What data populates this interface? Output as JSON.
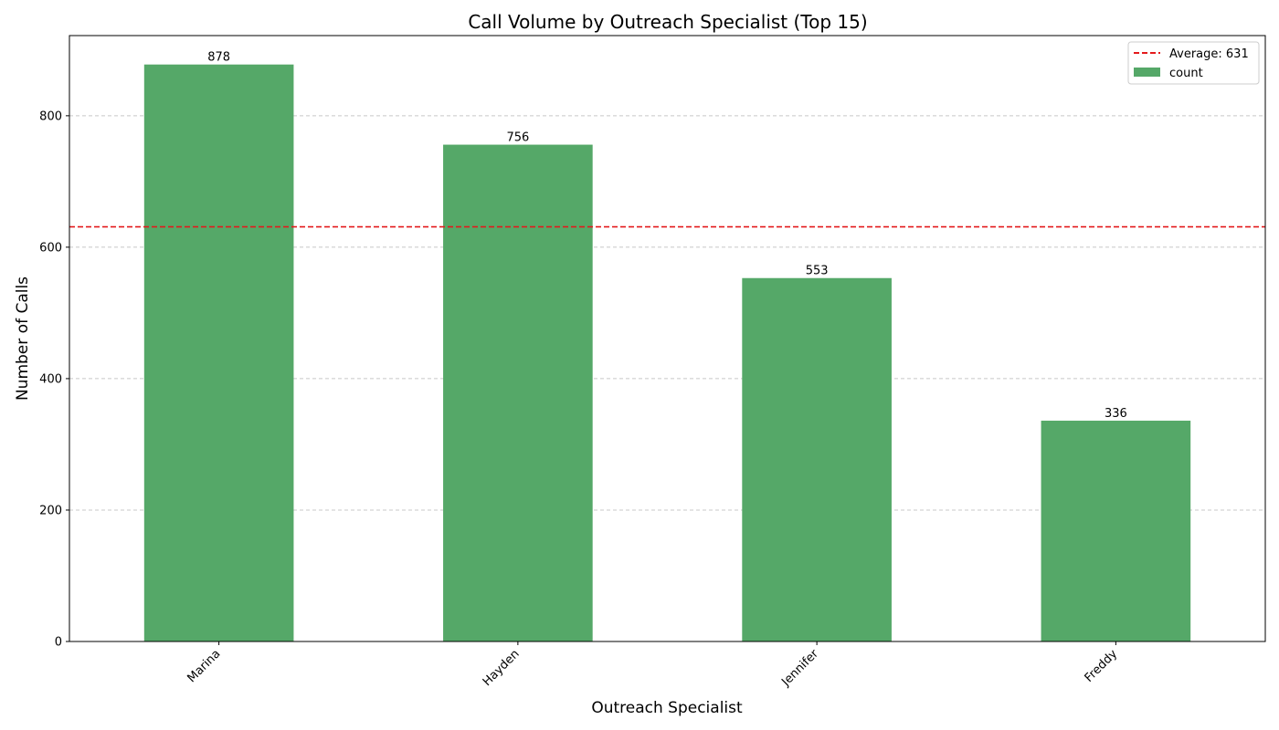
{
  "chart_data": {
    "type": "bar",
    "title": "Call Volume by Outreach Specialist (Top 15)",
    "xlabel": "Outreach Specialist",
    "ylabel": "Number of Calls",
    "categories": [
      "Marina",
      "Hayden",
      "Jennifer",
      "Freddy"
    ],
    "series": [
      {
        "name": "count",
        "values": [
          878,
          756,
          553,
          336
        ]
      }
    ],
    "average": {
      "label": "Average: 631",
      "value": 631
    },
    "ylim": [
      0,
      922
    ],
    "yticks": [
      0,
      200,
      400,
      600,
      800
    ],
    "grid": "y-dashed",
    "legend_position": "top-right",
    "colors": {
      "bar": "#55a868",
      "average_line": "#e41a1c",
      "grid": "#c8c8c8"
    }
  }
}
